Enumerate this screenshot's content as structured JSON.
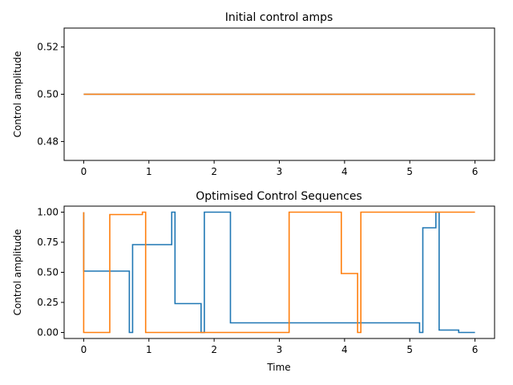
{
  "chart_data": [
    {
      "type": "line",
      "step": true,
      "title": "Initial control amps",
      "xlabel": "",
      "ylabel": "Control amplitude",
      "xlim": [
        -0.3,
        6.3
      ],
      "ylim": [
        0.472,
        0.528
      ],
      "xticks": [
        0,
        1,
        2,
        3,
        4,
        5,
        6
      ],
      "xtick_labels": [
        "0",
        "1",
        "2",
        "3",
        "4",
        "5",
        "6"
      ],
      "yticks": [
        0.48,
        0.5,
        0.52
      ],
      "ytick_labels": [
        "0.48",
        "0.50",
        "0.52"
      ],
      "series": [
        {
          "color": "#1f77b4",
          "points": [
            [
              0,
              0.5
            ],
            [
              6,
              0.5
            ]
          ]
        },
        {
          "color": "#ff7f0e",
          "points": [
            [
              0,
              0.5
            ],
            [
              6,
              0.5
            ]
          ]
        }
      ]
    },
    {
      "type": "line",
      "step": true,
      "title": "Optimised Control Sequences",
      "xlabel": "Time",
      "ylabel": "Control amplitude",
      "xlim": [
        -0.3,
        6.3
      ],
      "ylim": [
        -0.05,
        1.05
      ],
      "xticks": [
        0,
        1,
        2,
        3,
        4,
        5,
        6
      ],
      "xtick_labels": [
        "0",
        "1",
        "2",
        "3",
        "4",
        "5",
        "6"
      ],
      "yticks": [
        0.0,
        0.25,
        0.5,
        0.75,
        1.0
      ],
      "ytick_labels": [
        "0.00",
        "0.25",
        "0.50",
        "0.75",
        "1.00"
      ],
      "series": [
        {
          "color": "#1f77b4",
          "points": [
            [
              0,
              1.0
            ],
            [
              0.7,
              0.51
            ],
            [
              0.75,
              0.0
            ],
            [
              1.35,
              0.73
            ],
            [
              1.4,
              1.0
            ],
            [
              1.8,
              0.24
            ],
            [
              1.85,
              0.0
            ],
            [
              2.25,
              1.0
            ],
            [
              5.15,
              0.08
            ],
            [
              5.2,
              0.0
            ],
            [
              5.4,
              0.87
            ],
            [
              5.45,
              1.0
            ],
            [
              5.75,
              0.02
            ],
            [
              5.8,
              0.0
            ],
            [
              6.0,
              0.0
            ]
          ]
        },
        {
          "color": "#ff7f0e",
          "points": [
            [
              0,
              1.0
            ],
            [
              0.4,
              0.0
            ],
            [
              0.9,
              0.98
            ],
            [
              0.95,
              1.0
            ],
            [
              3.15,
              0.0
            ],
            [
              3.95,
              1.0
            ],
            [
              4.2,
              0.49
            ],
            [
              4.25,
              0.0
            ],
            [
              5.05,
              1.0
            ],
            [
              6.0,
              1.0
            ]
          ]
        }
      ]
    }
  ]
}
